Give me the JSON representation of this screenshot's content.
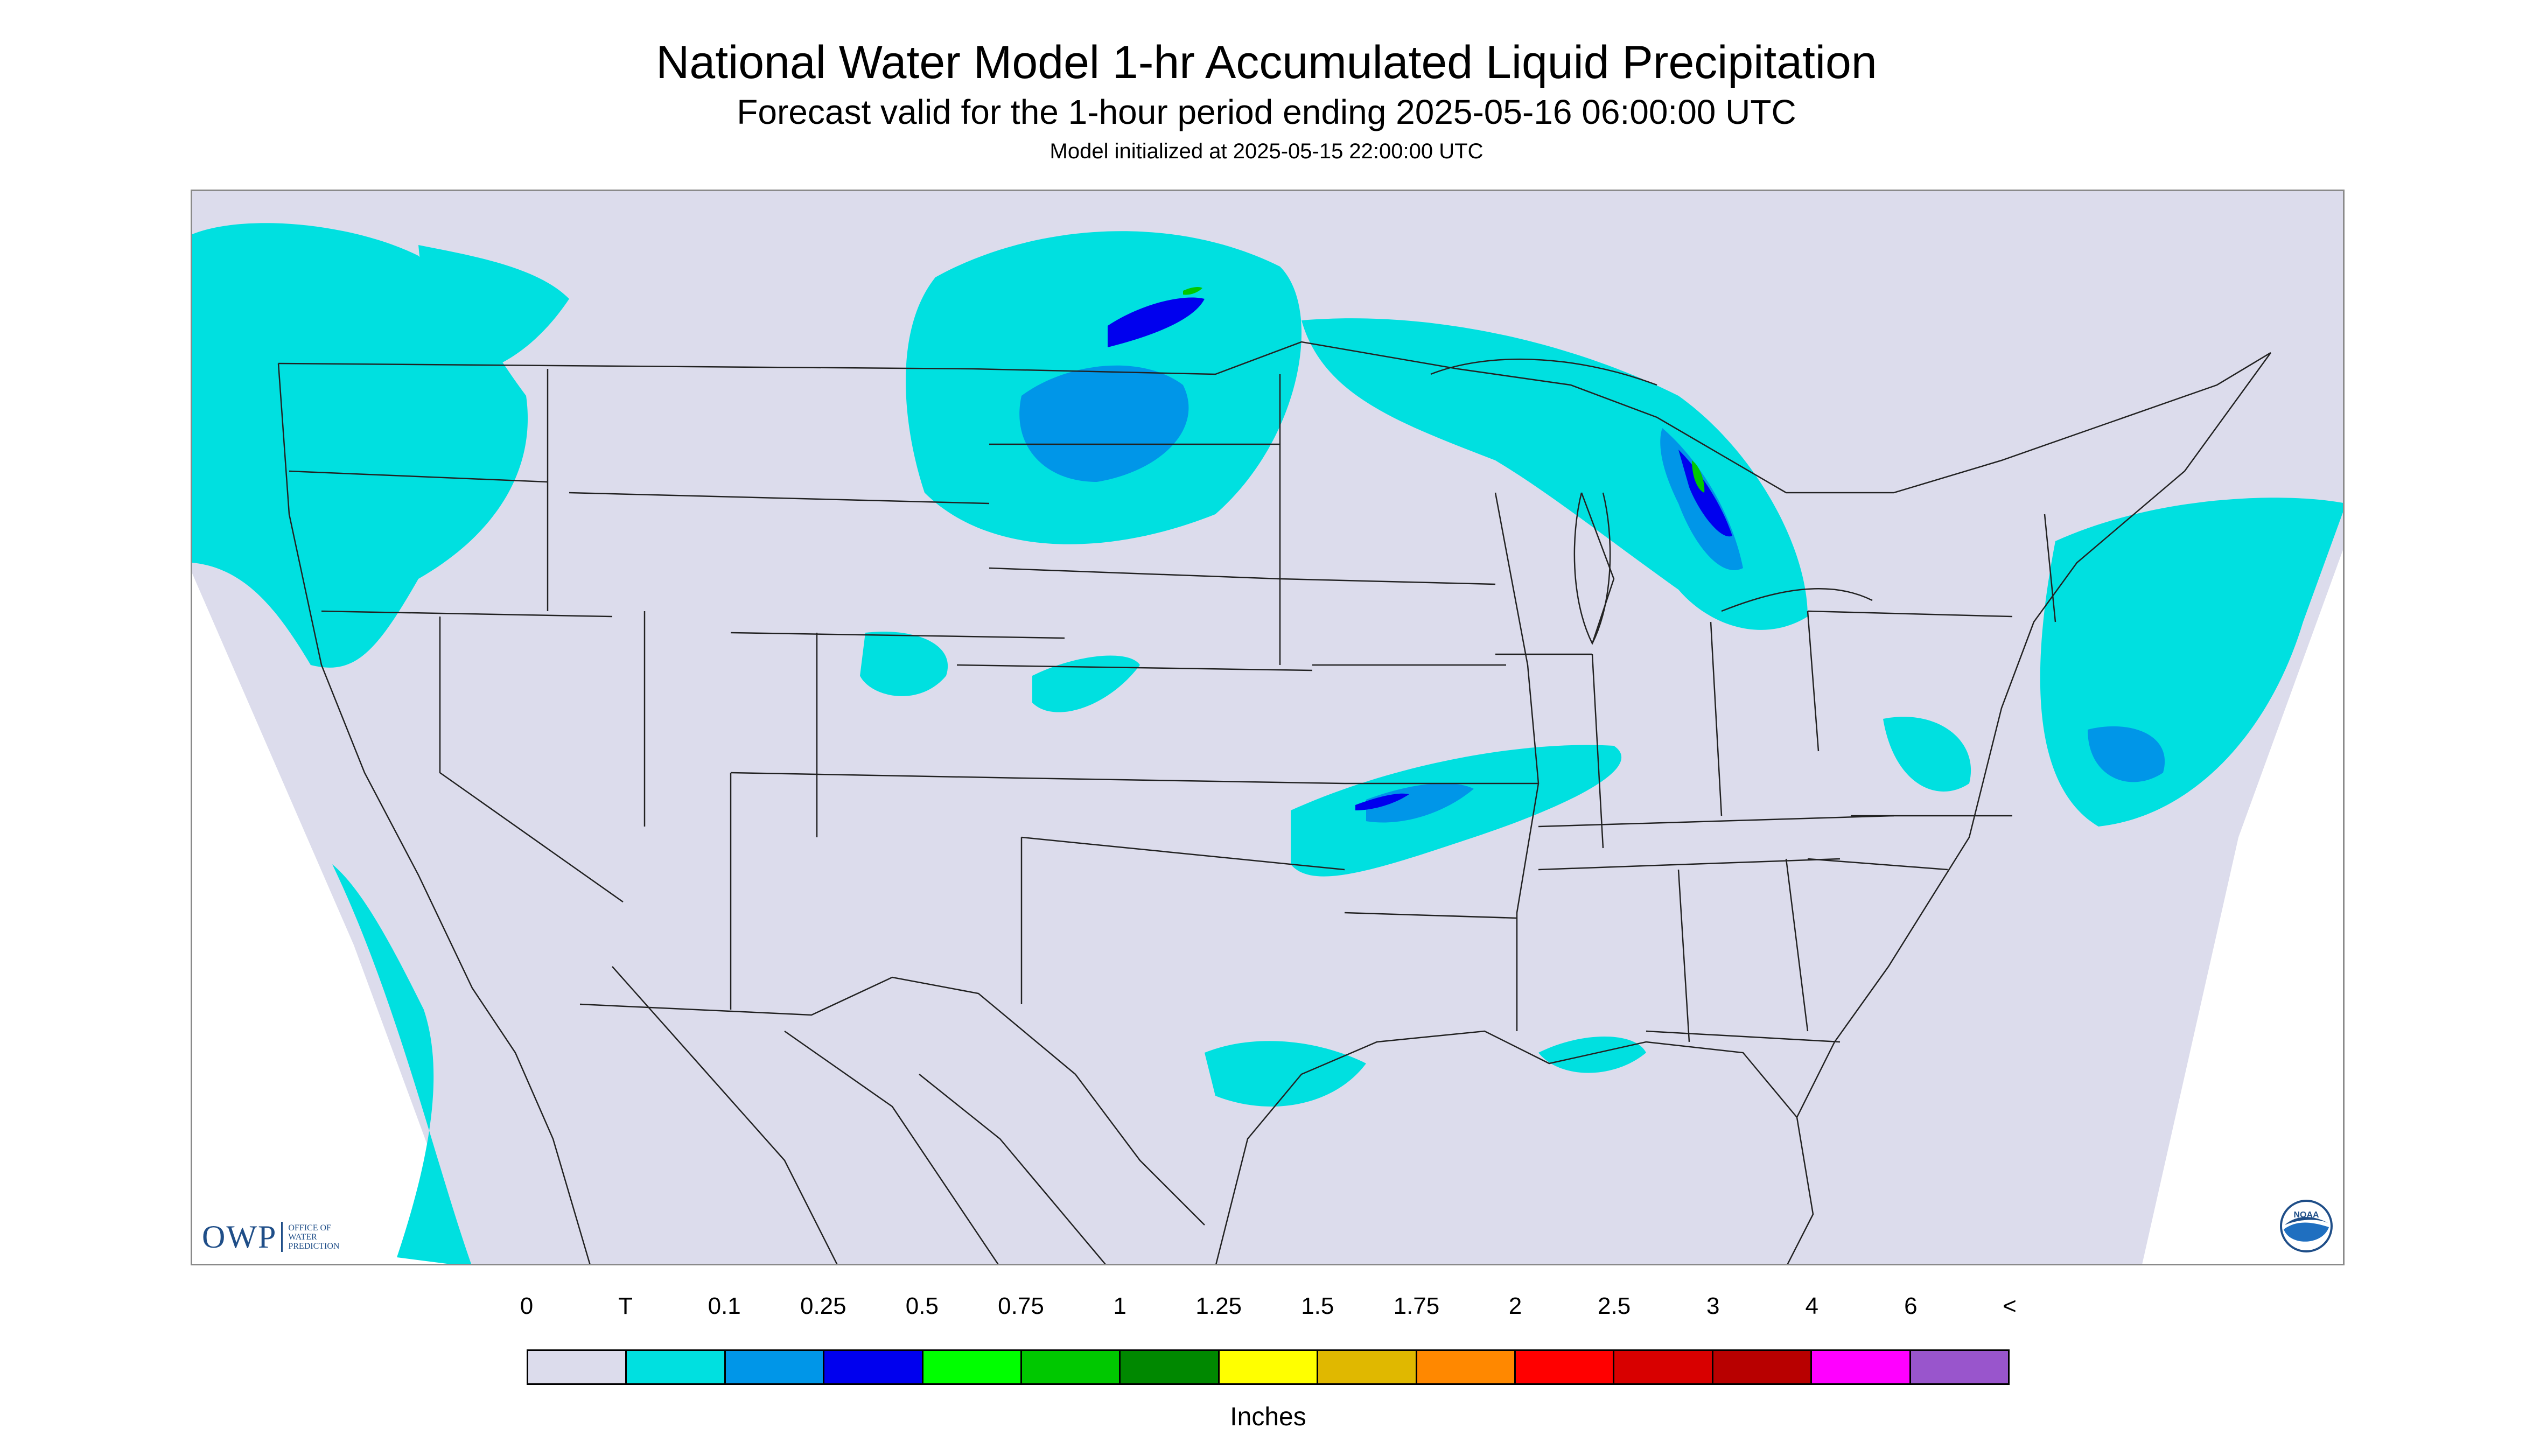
{
  "header": {
    "title": "National Water Model 1-hr Accumulated Liquid Precipitation",
    "subtitle": "Forecast valid for the 1-hour period ending 2025-05-16 06:00:00 UTC",
    "init_line": "Model initialized at 2025-05-15 22:00:00 UTC"
  },
  "map": {
    "background_color": "#dcdcec",
    "outside_domain_color": "#ffffff",
    "boundary_color": "#222222",
    "precip_colors": {
      "trace": "#00e0e0",
      "light": "#0096e8",
      "moderate": "#0000ee",
      "heavy": "#00c800"
    }
  },
  "logos": {
    "owp": {
      "letters": "OWP",
      "words": [
        "OFFICE OF",
        "WATER",
        "PREDICTION"
      ]
    },
    "noaa": {
      "text": "NOAA"
    }
  },
  "legend": {
    "units": "Inches",
    "labels": [
      "0",
      "T",
      "0.1",
      "0.25",
      "0.5",
      "0.75",
      "1",
      "1.25",
      "1.5",
      "1.75",
      "2",
      "2.5",
      "3",
      "4",
      "6",
      "<"
    ],
    "colors": [
      "#dcdcec",
      "#00e0e0",
      "#0096e8",
      "#0000ee",
      "#00ff00",
      "#00c800",
      "#008800",
      "#ffff00",
      "#e0b800",
      "#ff8800",
      "#ff0000",
      "#d80000",
      "#b80000",
      "#ff00ff",
      "#9955cc"
    ]
  }
}
